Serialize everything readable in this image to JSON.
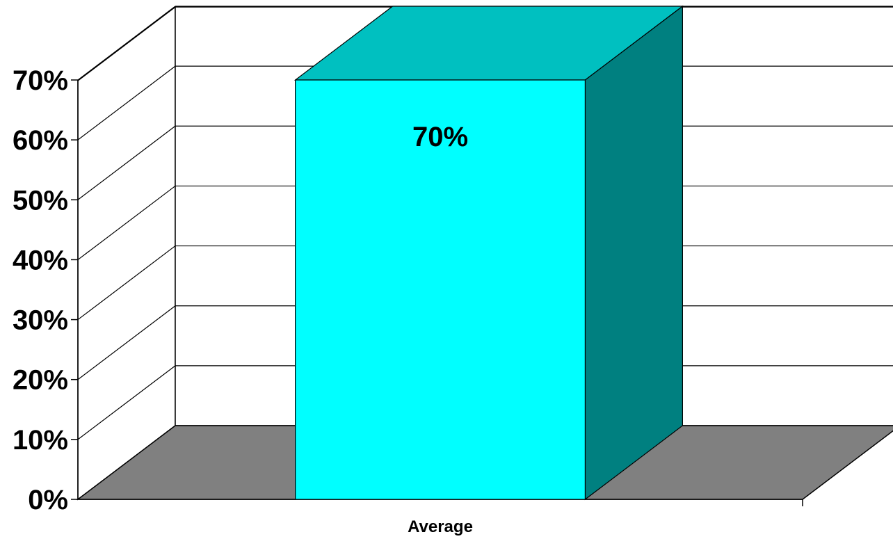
{
  "chart_data": {
    "type": "bar",
    "categories": [
      "Average"
    ],
    "values": [
      70
    ],
    "data_labels": [
      "70%"
    ],
    "ylim": [
      0,
      70
    ],
    "yticks": [
      0,
      10,
      20,
      30,
      40,
      50,
      60,
      70
    ],
    "ytick_labels": [
      "0%",
      "10%",
      "20%",
      "30%",
      "40%",
      "50%",
      "60%",
      "70%"
    ],
    "grid": true,
    "style": "3d",
    "colors": {
      "bar_front": "#00FFFF",
      "bar_top": "#00C0C0",
      "bar_side": "#008080",
      "floor": "#808080",
      "grid": "#000000"
    }
  }
}
